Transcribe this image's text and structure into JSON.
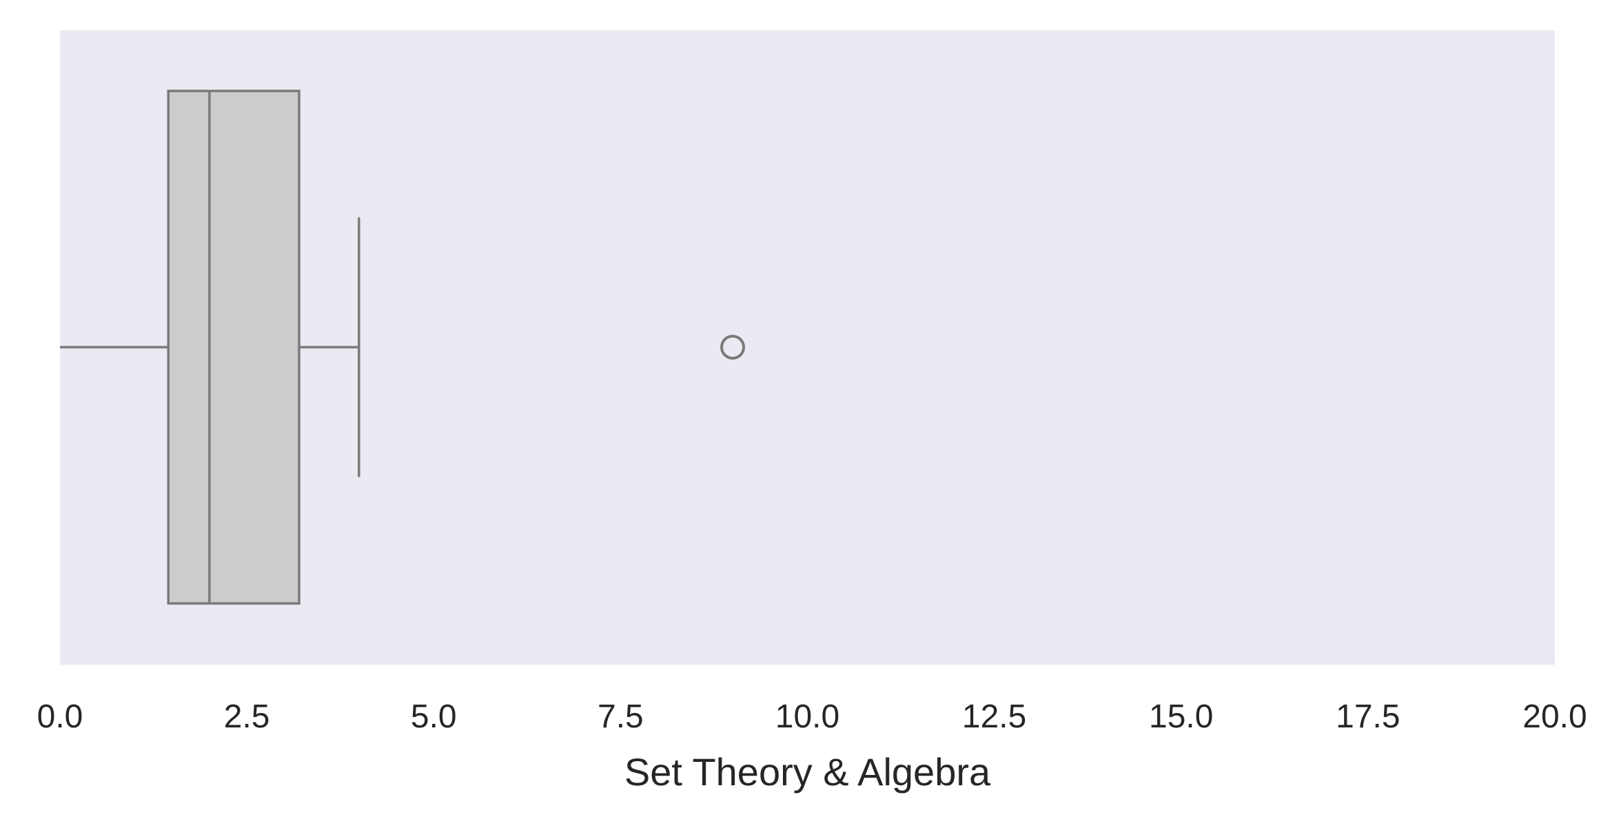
{
  "chart_data": {
    "type": "box",
    "orientation": "horizontal",
    "xlabel": "Set Theory & Algebra",
    "xlim": [
      0,
      20
    ],
    "xticks": [
      "0.0",
      "2.5",
      "5.0",
      "7.5",
      "10.0",
      "12.5",
      "15.0",
      "17.5",
      "20.0"
    ],
    "grid": false,
    "box": {
      "whisker_low": 0.0,
      "q1": 1.45,
      "median": 2.0,
      "q3": 3.2,
      "whisker_high": 4.0,
      "outliers": [
        9.0
      ]
    },
    "colors": {
      "plot_background": "#eaeaf2",
      "box_fill": "#cccccc",
      "line": "#7a7a7a",
      "text": "#262626"
    }
  }
}
